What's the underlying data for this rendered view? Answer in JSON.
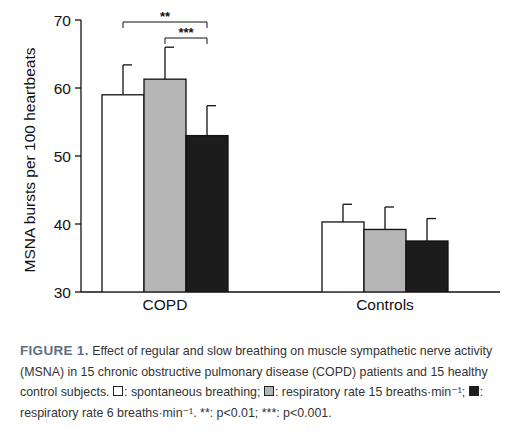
{
  "chart_data": {
    "type": "bar",
    "y_label": "MSNA bursts per 100 heartbeats",
    "categories": [
      "COPD",
      "Controls"
    ],
    "series": [
      {
        "name": "spontaneous breathing",
        "color": "#ffffff",
        "values": [
          59.0,
          40.3
        ],
        "errors": [
          4.4,
          2.6
        ]
      },
      {
        "name": "respiratory rate 15 breaths·min⁻¹",
        "color": "#b5b5b5",
        "values": [
          61.3,
          39.2
        ],
        "errors": [
          4.7,
          3.3
        ]
      },
      {
        "name": "respiratory rate 6 breaths·min⁻¹",
        "color": "#1c1c1c",
        "values": [
          53.0,
          37.5
        ],
        "errors": [
          4.4,
          3.3
        ]
      }
    ],
    "ylim": [
      30,
      70
    ],
    "yticks": [
      30,
      40,
      50,
      60,
      70
    ],
    "grid": false,
    "annotations": [
      {
        "text": "**",
        "category": 0,
        "from_series": 0,
        "to_series": 2
      },
      {
        "text": "***",
        "category": 0,
        "from_series": 1,
        "to_series": 2
      }
    ],
    "caption": {
      "label": "FIGURE 1.",
      "text": "Effect of regular and slow breathing on muscle sympathetic nerve activity (MSNA) in 15 chronic obstructive pulmonary disease (COPD) patients and 15 healthy control subjects.",
      "key_colon": ":",
      "key_end": [
        ";",
        ";",
        "."
      ],
      "note": "**: p<0.01; ***: p<0.001."
    }
  }
}
